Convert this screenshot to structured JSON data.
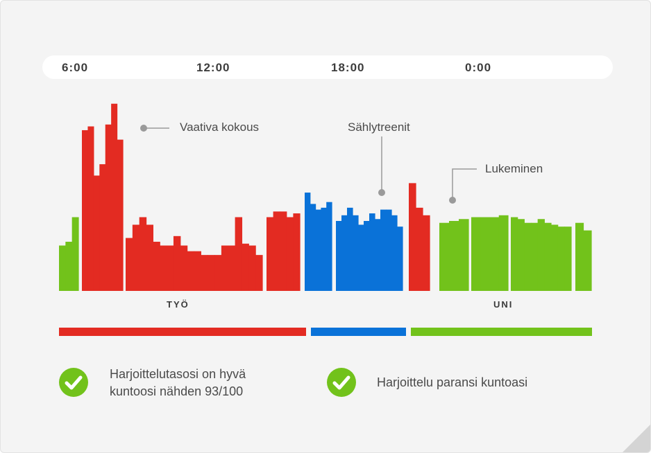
{
  "colors": {
    "work": "#e32b22",
    "activity": "#0a72d8",
    "sleep": "#72c21b",
    "leader": "#9a9a9a",
    "text": "#4a4a4a"
  },
  "timeline": {
    "labels": [
      "6:00",
      "12:00",
      "18:00",
      "0:00"
    ]
  },
  "chart_data": {
    "type": "bar",
    "y_unit": "relative level",
    "ylim": [
      0,
      100
    ],
    "groups": [
      {
        "category": "sleep",
        "values": [
          24,
          26,
          39
        ]
      },
      {
        "category": "work",
        "values": [
          85,
          87,
          61,
          67,
          88,
          99,
          80
        ]
      },
      {
        "category": "work",
        "values": [
          28,
          35,
          39,
          35,
          26,
          24,
          24,
          29,
          24,
          21,
          21,
          19,
          19,
          19,
          24,
          24,
          39,
          25,
          24,
          19
        ]
      },
      {
        "category": "work",
        "values": [
          39,
          42,
          42,
          39,
          41
        ]
      },
      {
        "category": "activity",
        "values": [
          52,
          46,
          43,
          44,
          47
        ]
      },
      {
        "category": "activity",
        "values": [
          37,
          40,
          44,
          40,
          35,
          37,
          41,
          38,
          43,
          43,
          40,
          34
        ]
      },
      {
        "category": "work",
        "values": [
          57,
          44,
          40
        ]
      },
      {
        "category": "sleep",
        "values": [
          36,
          37,
          38
        ]
      },
      {
        "category": "sleep",
        "values": [
          39,
          39,
          39,
          40
        ]
      },
      {
        "category": "sleep",
        "values": [
          39,
          38,
          36,
          36,
          38,
          36,
          35,
          34,
          34
        ]
      },
      {
        "category": "sleep",
        "values": [
          36,
          32
        ]
      }
    ],
    "annotations": [
      {
        "text": "Vaativa kokous",
        "category": "work"
      },
      {
        "text": "Sählytreenit",
        "category": "activity"
      },
      {
        "text": "Lukeminen",
        "category": "sleep"
      }
    ],
    "category_labels": [
      {
        "text": "TYÖ",
        "category": "work"
      },
      {
        "text": "UNI",
        "category": "sleep"
      }
    ],
    "legend_segments": [
      "work",
      "activity",
      "sleep"
    ]
  },
  "results": [
    {
      "icon": "check-circle-icon",
      "lines": [
        "Harjoittelutasosi on hyvä",
        "kuntoosi nähden  93/100"
      ]
    },
    {
      "icon": "check-circle-icon",
      "lines": [
        "Harjoittelu paransi kuntoasi"
      ]
    }
  ]
}
